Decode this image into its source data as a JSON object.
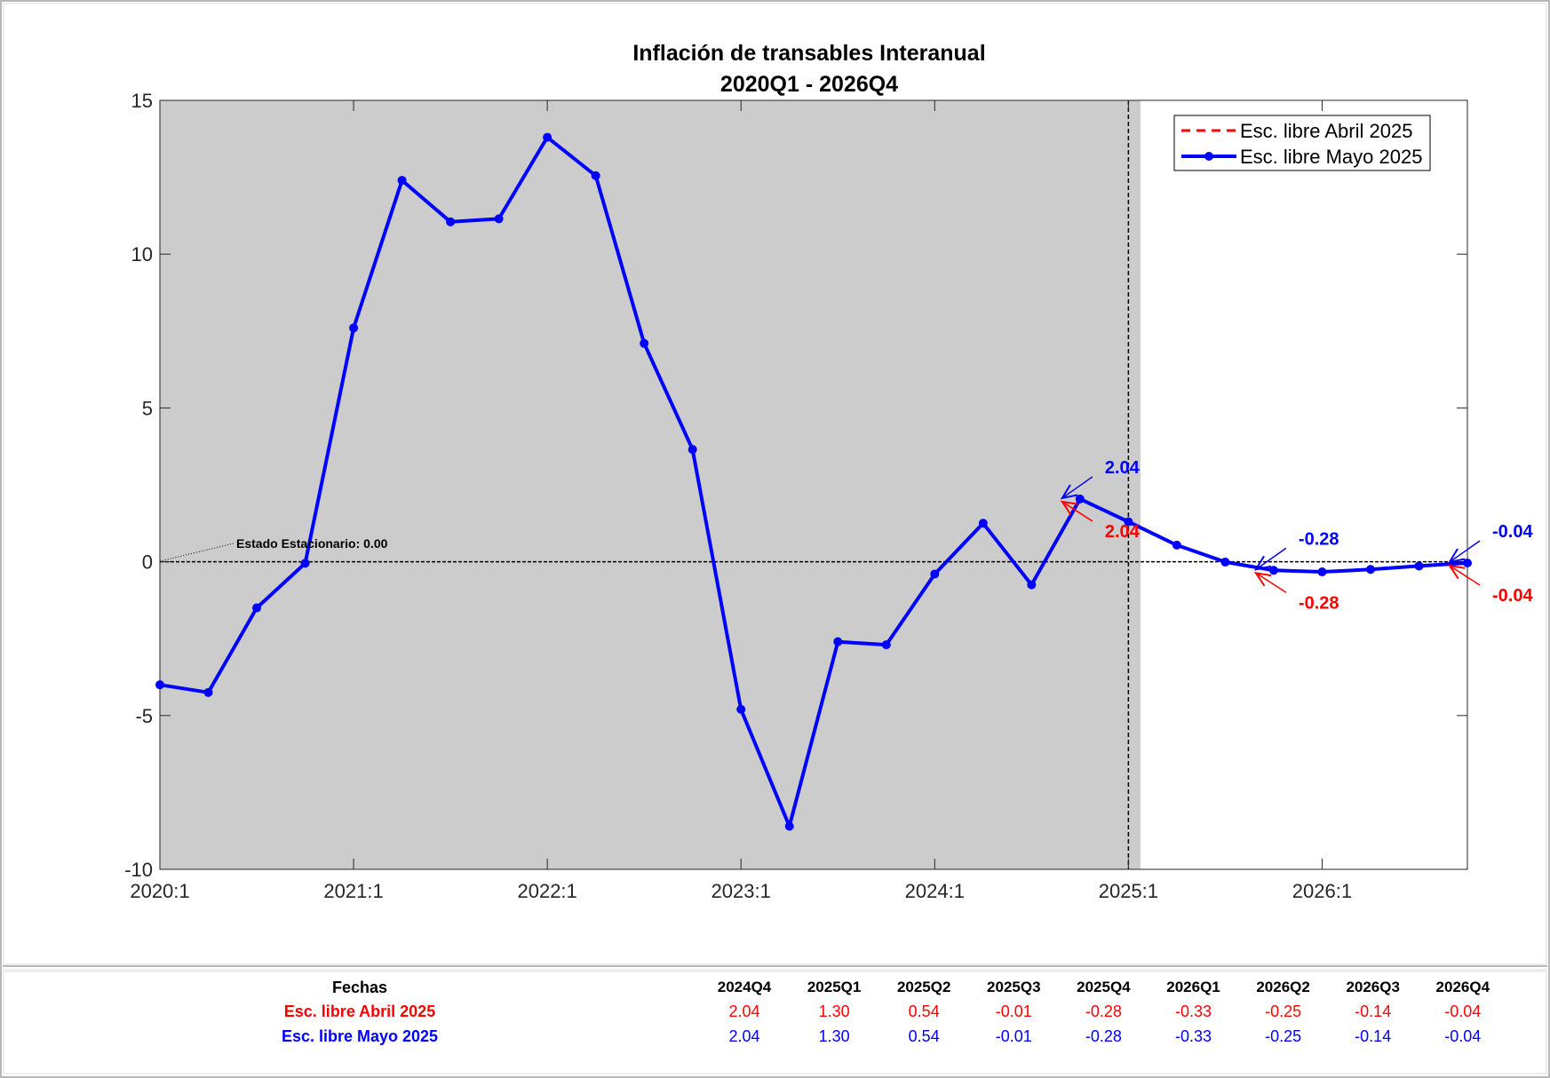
{
  "chart_data": {
    "type": "line",
    "title": "Inflación de transables Interanual",
    "subtitle": "2020Q1 - 2026Q4",
    "xlabel": "",
    "ylabel": "",
    "ylim": [
      -10,
      15
    ],
    "yticks": [
      "-10",
      "-5",
      "0",
      "5",
      "10",
      "15"
    ],
    "yticks_values": [
      -10,
      -5,
      0,
      5,
      10,
      15
    ],
    "xticks": [
      "2020:1",
      "2021:1",
      "2022:1",
      "2023:1",
      "2024:1",
      "2025:1",
      "2026:1"
    ],
    "xticks_index": [
      0,
      4,
      8,
      12,
      16,
      20,
      24
    ],
    "x": [
      "2020Q1",
      "2020Q2",
      "2020Q3",
      "2020Q4",
      "2021Q1",
      "2021Q2",
      "2021Q3",
      "2021Q4",
      "2022Q1",
      "2022Q2",
      "2022Q3",
      "2022Q4",
      "2023Q1",
      "2023Q2",
      "2023Q3",
      "2023Q4",
      "2024Q1",
      "2024Q2",
      "2024Q3",
      "2024Q4",
      "2025Q1",
      "2025Q2",
      "2025Q3",
      "2025Q4",
      "2026Q1",
      "2026Q2",
      "2026Q3",
      "2026Q4"
    ],
    "historical_shading_until": "2025Q1",
    "vertical_line_at": "2025Q1",
    "steady_state_label": "Estado Estacionario: 0.00",
    "steady_state_value": 0,
    "legend_position": "top-right",
    "series": [
      {
        "name": "Esc. libre Abril 2025",
        "color": "#ff0000",
        "style": "dashed",
        "values": [
          -4.0,
          -4.25,
          -1.5,
          -0.05,
          7.6,
          12.4,
          11.05,
          11.15,
          13.8,
          12.55,
          7.1,
          3.65,
          -4.8,
          -8.6,
          -2.6,
          -2.7,
          -0.4,
          1.25,
          -0.75,
          2.04,
          1.3,
          0.54,
          -0.01,
          -0.28,
          -0.33,
          -0.25,
          -0.14,
          -0.04
        ]
      },
      {
        "name": "Esc. libre Mayo 2025",
        "color": "#0000ff",
        "style": "solid-marker",
        "values": [
          -4.0,
          -4.25,
          -1.5,
          -0.05,
          7.6,
          12.4,
          11.05,
          11.15,
          13.8,
          12.55,
          7.1,
          3.65,
          -4.8,
          -8.6,
          -2.6,
          -2.7,
          -0.4,
          1.25,
          -0.75,
          2.04,
          1.3,
          0.54,
          -0.01,
          -0.28,
          -0.33,
          -0.25,
          -0.14,
          -0.04
        ]
      }
    ],
    "annotations": [
      {
        "index": 19,
        "blue": "2.04",
        "red": "2.04"
      },
      {
        "index": 23,
        "blue": "-0.28",
        "red": "-0.28"
      },
      {
        "index": 27,
        "blue": "-0.04",
        "red": "-0.04"
      }
    ]
  },
  "table": {
    "header_label": "Fechas",
    "columns": [
      "2024Q4",
      "2025Q1",
      "2025Q2",
      "2025Q3",
      "2025Q4",
      "2026Q1",
      "2026Q2",
      "2026Q3",
      "2026Q4"
    ],
    "rows": [
      {
        "label": "Esc. libre Abril 2025",
        "color": "#ff0000",
        "values": [
          "2.04",
          "1.30",
          "0.54",
          "-0.01",
          "-0.28",
          "-0.33",
          "-0.25",
          "-0.14",
          "-0.04"
        ]
      },
      {
        "label": "Esc. libre Mayo 2025",
        "color": "#0000ff",
        "values": [
          "2.04",
          "1.30",
          "0.54",
          "-0.01",
          "-0.28",
          "-0.33",
          "-0.25",
          "-0.14",
          "-0.04"
        ]
      }
    ]
  }
}
